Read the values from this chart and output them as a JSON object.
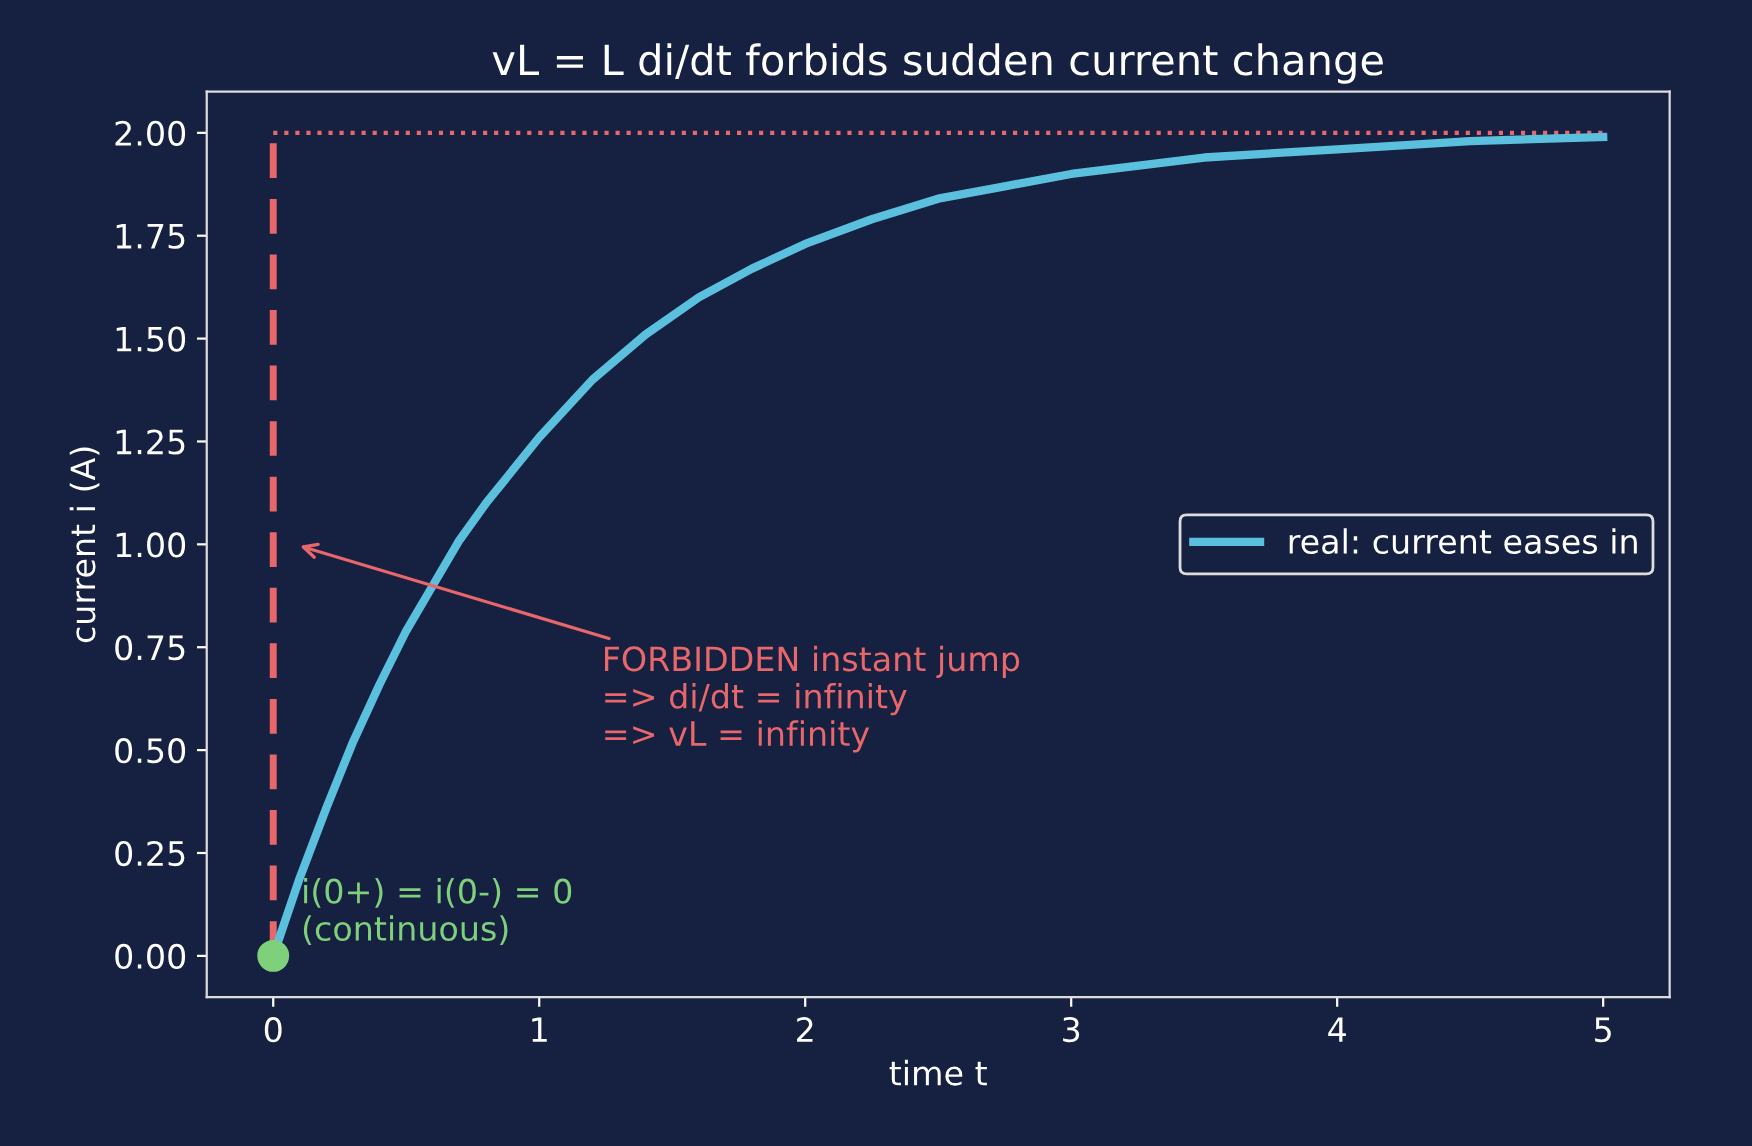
{
  "chart_data": {
    "type": "line",
    "title": "vL = L di/dt forbids sudden current change",
    "xlabel": "time t",
    "ylabel": "current i (A)",
    "series": [
      {
        "name": "real: current eases in",
        "color": "#5bc0de",
        "line_style": "solid",
        "x": [
          0,
          0.1,
          0.2,
          0.3,
          0.4,
          0.5,
          0.6,
          0.7,
          0.8,
          1.0,
          1.2,
          1.4,
          1.6,
          1.8,
          2.0,
          2.25,
          2.5,
          2.75,
          3.0,
          3.5,
          4.0,
          4.5,
          5.0
        ],
        "values": [
          0,
          0.19,
          0.36,
          0.52,
          0.66,
          0.79,
          0.9,
          1.01,
          1.1,
          1.26,
          1.4,
          1.51,
          1.6,
          1.67,
          1.73,
          1.79,
          1.84,
          1.87,
          1.9,
          1.94,
          1.96,
          1.98,
          1.99
        ]
      },
      {
        "color": "#e8676b",
        "line_style": "dashed",
        "x": [
          0,
          0
        ],
        "values": [
          0,
          2.0
        ]
      },
      {
        "color": "#e8676b",
        "line_style": "dotted",
        "x": [
          0,
          5
        ],
        "values": [
          2.0,
          2.0
        ]
      },
      {
        "type": "scatter",
        "color": "#7fd07a",
        "x": [
          0
        ],
        "values": [
          0
        ]
      }
    ],
    "annotations": [
      "FORBIDDEN instant jump\n=> di/dt = infinity\n=> vL = infinity",
      {
        "text": "i(0+) = i(0-) = 0\n(continuous)",
        "x": 0,
        "y": 0
      }
    ],
    "xlim": [
      -0.25,
      5.25
    ],
    "ylim": [
      -0.1,
      2.1
    ],
    "xticks": [
      0,
      1,
      2,
      3,
      4,
      5
    ],
    "yticks": [
      {
        "value": 0,
        "label": "0.00"
      },
      {
        "value": 0.25,
        "label": "0.25"
      },
      {
        "value": 0.5,
        "label": "0.50"
      },
      {
        "value": 0.75,
        "label": "0.75"
      },
      {
        "value": 1.0,
        "label": "1.00"
      },
      {
        "value": 1.25,
        "label": "1.25"
      },
      {
        "value": 1.5,
        "label": "1.50"
      },
      {
        "value": 1.75,
        "label": "1.75"
      },
      {
        "value": 2.0,
        "label": "2.00"
      }
    ],
    "legend": "center right",
    "grid": false
  }
}
